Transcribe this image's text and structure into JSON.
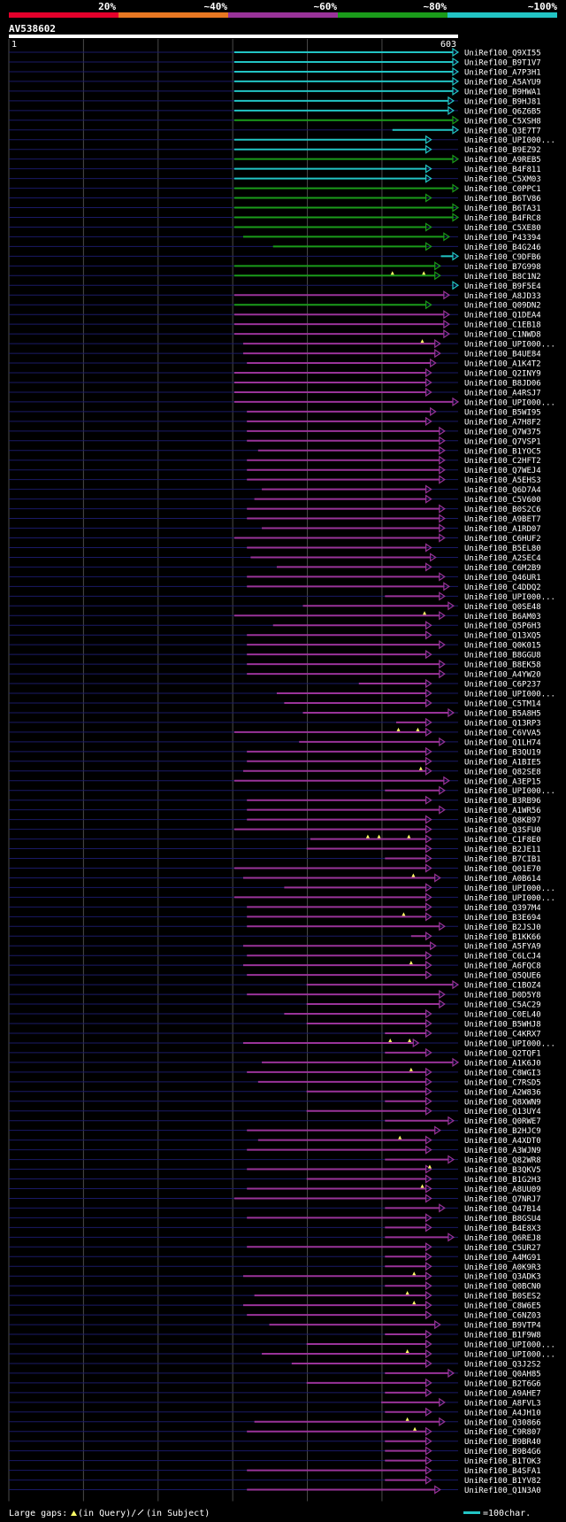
{
  "colors": {
    "background": "#000000",
    "scale": [
      "#e4002b",
      "#e87722",
      "#993399",
      "#1a9b1a",
      "#22c4c4"
    ],
    "track": "#1a1a66",
    "grid": "#4a4a4a",
    "ruler": "#ffffff"
  },
  "chart_data": {
    "type": "alignment",
    "title": "AV538602",
    "scale_labels": [
      "20%",
      "~40%",
      "~60%",
      "~80%",
      "~100%"
    ],
    "query_start_label": "1",
    "query_end_label": "603",
    "query_length": 603,
    "hits": [
      {
        "name": "UniRef100_Q9XI55",
        "s": 303,
        "e": 603,
        "c": 4,
        "g": []
      },
      {
        "name": "UniRef100_B9T1V7",
        "s": 303,
        "e": 603,
        "c": 4,
        "g": []
      },
      {
        "name": "UniRef100_A7P3H1",
        "s": 303,
        "e": 603,
        "c": 4,
        "g": []
      },
      {
        "name": "UniRef100_A5AYU9",
        "s": 303,
        "e": 603,
        "c": 4,
        "g": []
      },
      {
        "name": "UniRef100_B9HWA1",
        "s": 303,
        "e": 603,
        "c": 4,
        "g": []
      },
      {
        "name": "UniRef100_B9HJ81",
        "s": 303,
        "e": 597,
        "c": 4,
        "g": []
      },
      {
        "name": "UniRef100_Q6Z6B5",
        "s": 303,
        "e": 597,
        "c": 4,
        "g": []
      },
      {
        "name": "UniRef100_C5XSH8",
        "s": 303,
        "e": 603,
        "c": 3,
        "g": []
      },
      {
        "name": "UniRef100_Q3E7T7",
        "s": 515,
        "e": 603,
        "c": 4,
        "g": []
      },
      {
        "name": "UniRef100_UPI000...",
        "s": 303,
        "e": 567,
        "c": 4,
        "g": []
      },
      {
        "name": "UniRef100_B9EZ92",
        "s": 303,
        "e": 567,
        "c": 4,
        "g": []
      },
      {
        "name": "UniRef100_A9REB5",
        "s": 303,
        "e": 603,
        "c": 3,
        "g": []
      },
      {
        "name": "UniRef100_B4F811",
        "s": 303,
        "e": 567,
        "c": 4,
        "g": []
      },
      {
        "name": "UniRef100_C5XM03",
        "s": 303,
        "e": 567,
        "c": 4,
        "g": []
      },
      {
        "name": "UniRef100_C0PPC1",
        "s": 303,
        "e": 603,
        "c": 3,
        "g": []
      },
      {
        "name": "UniRef100_B6TV86",
        "s": 303,
        "e": 567,
        "c": 3,
        "g": []
      },
      {
        "name": "UniRef100_B6TA31",
        "s": 303,
        "e": 603,
        "c": 3,
        "g": []
      },
      {
        "name": "UniRef100_B4FRC8",
        "s": 303,
        "e": 603,
        "c": 3,
        "g": []
      },
      {
        "name": "UniRef100_C5XE80",
        "s": 303,
        "e": 567,
        "c": 3,
        "g": []
      },
      {
        "name": "UniRef100_P43394",
        "s": 315,
        "e": 591,
        "c": 3,
        "g": []
      },
      {
        "name": "UniRef100_B4G246",
        "s": 355,
        "e": 567,
        "c": 3,
        "g": []
      },
      {
        "name": "UniRef100_C9DFB6",
        "s": 580,
        "e": 603,
        "c": 4,
        "g": []
      },
      {
        "name": "UniRef100_B7G998",
        "s": 303,
        "e": 579,
        "c": 3,
        "g": []
      },
      {
        "name": "UniRef100_B8C1N2",
        "s": 303,
        "e": 579,
        "c": 3,
        "g": [
          515,
          557
        ]
      },
      {
        "name": "UniRef100_B9F5E4",
        "s": 603,
        "e": 603,
        "c": 4,
        "g": []
      },
      {
        "name": "UniRef100_A8JD33",
        "s": 303,
        "e": 591,
        "c": 2,
        "g": []
      },
      {
        "name": "UniRef100_Q09DN2",
        "s": 303,
        "e": 567,
        "c": 3,
        "g": []
      },
      {
        "name": "UniRef100_Q1DEA4",
        "s": 303,
        "e": 591,
        "c": 2,
        "g": []
      },
      {
        "name": "UniRef100_C1EB18",
        "s": 303,
        "e": 591,
        "c": 2,
        "g": []
      },
      {
        "name": "UniRef100_C1NWD8",
        "s": 303,
        "e": 591,
        "c": 2,
        "g": []
      },
      {
        "name": "UniRef100_UPI000...",
        "s": 315,
        "e": 579,
        "c": 2,
        "g": [
          555
        ]
      },
      {
        "name": "UniRef100_B4UE84",
        "s": 315,
        "e": 579,
        "c": 2,
        "g": []
      },
      {
        "name": "UniRef100_A1K4T2",
        "s": 320,
        "e": 573,
        "c": 2,
        "g": []
      },
      {
        "name": "UniRef100_Q2INY9",
        "s": 303,
        "e": 567,
        "c": 2,
        "g": []
      },
      {
        "name": "UniRef100_B8JD06",
        "s": 303,
        "e": 567,
        "c": 2,
        "g": []
      },
      {
        "name": "UniRef100_A4RSJ7",
        "s": 303,
        "e": 567,
        "c": 2,
        "g": []
      },
      {
        "name": "UniRef100_UPI000...",
        "s": 303,
        "e": 603,
        "c": 2,
        "g": []
      },
      {
        "name": "UniRef100_B5WI95",
        "s": 320,
        "e": 573,
        "c": 2,
        "g": []
      },
      {
        "name": "UniRef100_A7H8F2",
        "s": 320,
        "e": 567,
        "c": 2,
        "g": []
      },
      {
        "name": "UniRef100_Q7W375",
        "s": 320,
        "e": 585,
        "c": 2,
        "g": []
      },
      {
        "name": "UniRef100_Q7VSP1",
        "s": 320,
        "e": 585,
        "c": 2,
        "g": []
      },
      {
        "name": "UniRef100_B1YOC5",
        "s": 335,
        "e": 585,
        "c": 2,
        "g": []
      },
      {
        "name": "UniRef100_C2HFT2",
        "s": 320,
        "e": 585,
        "c": 2,
        "g": []
      },
      {
        "name": "UniRef100_Q7WEJ4",
        "s": 320,
        "e": 585,
        "c": 2,
        "g": []
      },
      {
        "name": "UniRef100_A5EHS3",
        "s": 320,
        "e": 585,
        "c": 2,
        "g": []
      },
      {
        "name": "UniRef100_Q6D7A4",
        "s": 340,
        "e": 567,
        "c": 2,
        "g": []
      },
      {
        "name": "UniRef100_C5V600",
        "s": 330,
        "e": 567,
        "c": 2,
        "g": []
      },
      {
        "name": "UniRef100_B0S2C6",
        "s": 320,
        "e": 585,
        "c": 2,
        "g": []
      },
      {
        "name": "UniRef100_A9BET7",
        "s": 320,
        "e": 585,
        "c": 2,
        "g": []
      },
      {
        "name": "UniRef100_A1RD07",
        "s": 340,
        "e": 585,
        "c": 2,
        "g": []
      },
      {
        "name": "UniRef100_C6HUF2",
        "s": 303,
        "e": 585,
        "c": 2,
        "g": []
      },
      {
        "name": "UniRef100_B5EL80",
        "s": 320,
        "e": 567,
        "c": 2,
        "g": []
      },
      {
        "name": "UniRef100_A2SEC4",
        "s": 325,
        "e": 573,
        "c": 2,
        "g": []
      },
      {
        "name": "UniRef100_C6M2B9",
        "s": 360,
        "e": 567,
        "c": 2,
        "g": []
      },
      {
        "name": "UniRef100_Q46UR1",
        "s": 320,
        "e": 585,
        "c": 2,
        "g": []
      },
      {
        "name": "UniRef100_C4DDQ2",
        "s": 320,
        "e": 591,
        "c": 2,
        "g": []
      },
      {
        "name": "UniRef100_UPI000...",
        "s": 505,
        "e": 585,
        "c": 2,
        "g": []
      },
      {
        "name": "UniRef100_Q0SE48",
        "s": 395,
        "e": 597,
        "c": 2,
        "g": []
      },
      {
        "name": "UniRef100_B6AM03",
        "s": 303,
        "e": 585,
        "c": 2,
        "g": [
          558
        ]
      },
      {
        "name": "UniRef100_Q5P6H3",
        "s": 355,
        "e": 567,
        "c": 2,
        "g": []
      },
      {
        "name": "UniRef100_Q13XQ5",
        "s": 320,
        "e": 567,
        "c": 2,
        "g": []
      },
      {
        "name": "UniRef100_Q0K015",
        "s": 320,
        "e": 585,
        "c": 2,
        "g": []
      },
      {
        "name": "UniRef100_B8GGU8",
        "s": 320,
        "e": 567,
        "c": 2,
        "g": []
      },
      {
        "name": "UniRef100_B8EK58",
        "s": 320,
        "e": 585,
        "c": 2,
        "g": []
      },
      {
        "name": "UniRef100_A4YW20",
        "s": 320,
        "e": 585,
        "c": 2,
        "g": []
      },
      {
        "name": "UniRef100_C6P237",
        "s": 470,
        "e": 567,
        "c": 2,
        "g": []
      },
      {
        "name": "UniRef100_UPI000...",
        "s": 360,
        "e": 567,
        "c": 2,
        "g": []
      },
      {
        "name": "UniRef100_C5TM14",
        "s": 370,
        "e": 567,
        "c": 2,
        "g": []
      },
      {
        "name": "UniRef100_B5A8H5",
        "s": 395,
        "e": 597,
        "c": 2,
        "g": []
      },
      {
        "name": "UniRef100_Q13RP3",
        "s": 520,
        "e": 567,
        "c": 2,
        "g": []
      },
      {
        "name": "UniRef100_C6VVA5",
        "s": 303,
        "e": 567,
        "c": 2,
        "g": [
          523,
          549
        ]
      },
      {
        "name": "UniRef100_Q1LH74",
        "s": 390,
        "e": 585,
        "c": 2,
        "g": []
      },
      {
        "name": "UniRef100_B3QU19",
        "s": 320,
        "e": 567,
        "c": 2,
        "g": []
      },
      {
        "name": "UniRef100_A1BIE5",
        "s": 320,
        "e": 567,
        "c": 2,
        "g": []
      },
      {
        "name": "UniRef100_Q82SE8",
        "s": 315,
        "e": 567,
        "c": 2,
        "g": [
          553
        ]
      },
      {
        "name": "UniRef100_A3EP15",
        "s": 303,
        "e": 591,
        "c": 2,
        "g": []
      },
      {
        "name": "UniRef100_UPI000...",
        "s": 505,
        "e": 585,
        "c": 2,
        "g": []
      },
      {
        "name": "UniRef100_B3RB96",
        "s": 320,
        "e": 567,
        "c": 2,
        "g": []
      },
      {
        "name": "UniRef100_A1WR56",
        "s": 320,
        "e": 585,
        "c": 2,
        "g": []
      },
      {
        "name": "UniRef100_Q8KB97",
        "s": 320,
        "e": 567,
        "c": 2,
        "g": []
      },
      {
        "name": "UniRef100_Q3SFU0",
        "s": 303,
        "e": 567,
        "c": 2,
        "g": []
      },
      {
        "name": "UniRef100_C1F8E0",
        "s": 405,
        "e": 567,
        "c": 2,
        "g": [
          482,
          497,
          537
        ]
      },
      {
        "name": "UniRef100_B2JE11",
        "s": 400,
        "e": 567,
        "c": 2,
        "g": []
      },
      {
        "name": "UniRef100_B7CIB1",
        "s": 505,
        "e": 567,
        "c": 2,
        "g": []
      },
      {
        "name": "UniRef100_Q01E70",
        "s": 303,
        "e": 567,
        "c": 2,
        "g": []
      },
      {
        "name": "UniRef100_A0B614",
        "s": 315,
        "e": 579,
        "c": 2,
        "g": [
          543
        ]
      },
      {
        "name": "UniRef100_UPI000...",
        "s": 370,
        "e": 567,
        "c": 2,
        "g": []
      },
      {
        "name": "UniRef100_UPI000...",
        "s": 303,
        "e": 567,
        "c": 2,
        "g": []
      },
      {
        "name": "UniRef100_Q397M4",
        "s": 320,
        "e": 567,
        "c": 2,
        "g": []
      },
      {
        "name": "UniRef100_B3E694",
        "s": 320,
        "e": 567,
        "c": 2,
        "g": [
          530
        ]
      },
      {
        "name": "UniRef100_B2JSJ0",
        "s": 320,
        "e": 585,
        "c": 2,
        "g": []
      },
      {
        "name": "UniRef100_B1KK66",
        "s": 540,
        "e": 567,
        "c": 2,
        "g": []
      },
      {
        "name": "UniRef100_A5FYA9",
        "s": 315,
        "e": 573,
        "c": 2,
        "g": []
      },
      {
        "name": "UniRef100_C6LCJ4",
        "s": 320,
        "e": 567,
        "c": 2,
        "g": []
      },
      {
        "name": "UniRef100_A6FQC8",
        "s": 315,
        "e": 567,
        "c": 2,
        "g": [
          540
        ]
      },
      {
        "name": "UniRef100_Q5QUE6",
        "s": 320,
        "e": 567,
        "c": 2,
        "g": []
      },
      {
        "name": "UniRef100_C1BOZ4",
        "s": 400,
        "e": 603,
        "c": 2,
        "g": []
      },
      {
        "name": "UniRef100_D0D5Y8",
        "s": 320,
        "e": 585,
        "c": 2,
        "g": []
      },
      {
        "name": "UniRef100_C5AC29",
        "s": 400,
        "e": 585,
        "c": 2,
        "g": []
      },
      {
        "name": "UniRef100_C0EL40",
        "s": 370,
        "e": 567,
        "c": 2,
        "g": []
      },
      {
        "name": "UniRef100_B5WHJ8",
        "s": 400,
        "e": 567,
        "c": 2,
        "g": []
      },
      {
        "name": "UniRef100_C4KRX7",
        "s": 505,
        "e": 567,
        "c": 2,
        "g": []
      },
      {
        "name": "UniRef100_UPI000...",
        "s": 315,
        "e": 550,
        "c": 2,
        "g": [
          512,
          538
        ]
      },
      {
        "name": "UniRef100_Q2TQF1",
        "s": 505,
        "e": 567,
        "c": 2,
        "g": []
      },
      {
        "name": "UniRef100_A1K6J0",
        "s": 340,
        "e": 603,
        "c": 2,
        "g": []
      },
      {
        "name": "UniRef100_C8WGI3",
        "s": 320,
        "e": 567,
        "c": 2,
        "g": [
          540
        ]
      },
      {
        "name": "UniRef100_C7RSD5",
        "s": 335,
        "e": 567,
        "c": 2,
        "g": []
      },
      {
        "name": "UniRef100_A2W836",
        "s": 400,
        "e": 567,
        "c": 2,
        "g": []
      },
      {
        "name": "UniRef100_Q8XWN9",
        "s": 505,
        "e": 567,
        "c": 2,
        "g": []
      },
      {
        "name": "UniRef100_Q13UY4",
        "s": 400,
        "e": 567,
        "c": 2,
        "g": []
      },
      {
        "name": "UniRef100_Q0RWE7",
        "s": 505,
        "e": 597,
        "c": 2,
        "g": []
      },
      {
        "name": "UniRef100_B2HJC9",
        "s": 320,
        "e": 579,
        "c": 2,
        "g": []
      },
      {
        "name": "UniRef100_A4XDT0",
        "s": 335,
        "e": 567,
        "c": 2,
        "g": [
          525
        ]
      },
      {
        "name": "UniRef100_A3WJN9",
        "s": 320,
        "e": 567,
        "c": 2,
        "g": []
      },
      {
        "name": "UniRef100_Q82WR8",
        "s": 505,
        "e": 597,
        "c": 2,
        "g": []
      },
      {
        "name": "UniRef100_B3QKV5",
        "s": 320,
        "e": 567,
        "c": 2,
        "g": [
          565
        ]
      },
      {
        "name": "UniRef100_B1G2H3",
        "s": 400,
        "e": 567,
        "c": 2,
        "g": []
      },
      {
        "name": "UniRef100_A8UU09",
        "s": 320,
        "e": 567,
        "c": 2,
        "g": [
          555
        ]
      },
      {
        "name": "UniRef100_Q7NRJ7",
        "s": 303,
        "e": 567,
        "c": 2,
        "g": []
      },
      {
        "name": "UniRef100_Q47B14",
        "s": 505,
        "e": 585,
        "c": 2,
        "g": []
      },
      {
        "name": "UniRef100_B8GSU4",
        "s": 320,
        "e": 567,
        "c": 2,
        "g": []
      },
      {
        "name": "UniRef100_B4E8X3",
        "s": 505,
        "e": 567,
        "c": 2,
        "g": []
      },
      {
        "name": "UniRef100_Q6REJ8",
        "s": 505,
        "e": 597,
        "c": 2,
        "g": []
      },
      {
        "name": "UniRef100_C5UR27",
        "s": 320,
        "e": 567,
        "c": 2,
        "g": []
      },
      {
        "name": "UniRef100_A4MG91",
        "s": 505,
        "e": 567,
        "c": 2,
        "g": []
      },
      {
        "name": "UniRef100_A0K9R3",
        "s": 505,
        "e": 567,
        "c": 2,
        "g": []
      },
      {
        "name": "UniRef100_Q3ADK3",
        "s": 315,
        "e": 567,
        "c": 2,
        "g": [
          544
        ]
      },
      {
        "name": "UniRef100_Q0BCN0",
        "s": 505,
        "e": 567,
        "c": 2,
        "g": []
      },
      {
        "name": "UniRef100_B0SES2",
        "s": 330,
        "e": 567,
        "c": 2,
        "g": [
          535
        ]
      },
      {
        "name": "UniRef100_C8W6E5",
        "s": 315,
        "e": 567,
        "c": 2,
        "g": [
          544
        ]
      },
      {
        "name": "UniRef100_C6NZ03",
        "s": 320,
        "e": 567,
        "c": 2,
        "g": []
      },
      {
        "name": "UniRef100_B9VTP4",
        "s": 350,
        "e": 579,
        "c": 2,
        "g": []
      },
      {
        "name": "UniRef100_B1F9W8",
        "s": 505,
        "e": 567,
        "c": 2,
        "g": []
      },
      {
        "name": "UniRef100_UPI000...",
        "s": 400,
        "e": 567,
        "c": 2,
        "g": []
      },
      {
        "name": "UniRef100_UPI000...",
        "s": 340,
        "e": 567,
        "c": 2,
        "g": [
          535
        ]
      },
      {
        "name": "UniRef100_Q3J2S2",
        "s": 380,
        "e": 567,
        "c": 2,
        "g": []
      },
      {
        "name": "UniRef100_Q0AH85",
        "s": 505,
        "e": 597,
        "c": 2,
        "g": []
      },
      {
        "name": "UniRef100_B2T6G6",
        "s": 400,
        "e": 567,
        "c": 2,
        "g": []
      },
      {
        "name": "UniRef100_A9AHE7",
        "s": 505,
        "e": 567,
        "c": 2,
        "g": []
      },
      {
        "name": "UniRef100_A8FVL3",
        "s": 500,
        "e": 585,
        "c": 2,
        "g": []
      },
      {
        "name": "UniRef100_A4JH10",
        "s": 505,
        "e": 567,
        "c": 2,
        "g": []
      },
      {
        "name": "UniRef100_Q30866",
        "s": 330,
        "e": 585,
        "c": 2,
        "g": [
          535
        ]
      },
      {
        "name": "UniRef100_C9R807",
        "s": 320,
        "e": 567,
        "c": 2,
        "g": [
          545
        ]
      },
      {
        "name": "UniRef100_B9BR40",
        "s": 505,
        "e": 567,
        "c": 2,
        "g": []
      },
      {
        "name": "UniRef100_B9B4G6",
        "s": 505,
        "e": 567,
        "c": 2,
        "g": []
      },
      {
        "name": "UniRef100_B1TOK3",
        "s": 505,
        "e": 567,
        "c": 2,
        "g": []
      },
      {
        "name": "UniRef100_B4SFA1",
        "s": 320,
        "e": 567,
        "c": 2,
        "g": []
      },
      {
        "name": "UniRef100_B1YV82",
        "s": 505,
        "e": 567,
        "c": 2,
        "g": []
      },
      {
        "name": "UniRef100_Q1N3A0",
        "s": 320,
        "e": 579,
        "c": 2,
        "g": []
      }
    ]
  },
  "legend": {
    "prefix": "Large gaps:",
    "query_text": "(in Query)/",
    "subject_text": "(in Subject)",
    "scale_text": "=100char."
  }
}
